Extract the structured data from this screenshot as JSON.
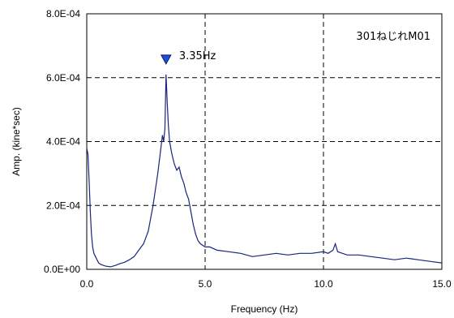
{
  "chart_data": {
    "type": "line",
    "xlabel": "Frequency (Hz)",
    "ylabel": "Amp. (kine*sec)",
    "xlim": [
      0,
      15
    ],
    "ylim": [
      0,
      0.0008
    ],
    "x_ticks": [
      "0.0",
      "5.0",
      "10.0",
      "15.0"
    ],
    "y_ticks": [
      "0.0E+00",
      "2.0E-04",
      "4.0E-04",
      "6.0E-04",
      "8.0E-04"
    ],
    "grid": true,
    "legend": "none",
    "line_color": "#1a237e",
    "marker_color": "#1e4fd8",
    "series": [
      {
        "x": [
          0.0,
          0.05,
          0.1,
          0.15,
          0.2,
          0.25,
          0.3,
          0.4,
          0.5,
          0.6,
          0.8,
          1.0,
          1.2,
          1.4,
          1.6,
          1.8,
          2.0,
          2.2,
          2.4,
          2.6,
          2.8,
          2.9,
          3.0,
          3.1,
          3.2,
          3.25,
          3.3,
          3.35,
          3.4,
          3.45,
          3.5,
          3.6,
          3.7,
          3.8,
          3.9,
          4.0,
          4.1,
          4.2,
          4.3,
          4.4,
          4.5,
          4.6,
          4.7,
          4.8,
          5.0,
          5.2,
          5.5,
          6.0,
          6.5,
          7.0,
          7.5,
          8.0,
          8.5,
          9.0,
          9.5,
          10.0,
          10.2,
          10.4,
          10.5,
          10.6,
          10.8,
          11.0,
          11.5,
          12.0,
          12.5,
          13.0,
          13.5,
          14.0,
          14.5,
          15.0
        ],
        "y": [
          0.00038,
          0.00036,
          0.00028,
          0.00018,
          0.00011,
          7e-05,
          5e-05,
          3.5e-05,
          2e-05,
          1.5e-05,
          1e-05,
          8e-06,
          1.2e-05,
          1.8e-05,
          2.2e-05,
          3e-05,
          4e-05,
          6e-05,
          8e-05,
          0.00012,
          0.0002,
          0.00025,
          0.0003,
          0.00036,
          0.00042,
          0.0004,
          0.00044,
          0.00061,
          0.00052,
          0.00045,
          0.0004,
          0.00036,
          0.00033,
          0.00031,
          0.00032,
          0.00029,
          0.00027,
          0.00024,
          0.00022,
          0.00018,
          0.00014,
          0.00011,
          9e-05,
          8e-05,
          7e-05,
          7e-05,
          6e-05,
          5.5e-05,
          5e-05,
          4e-05,
          4.5e-05,
          5e-05,
          4.5e-05,
          5e-05,
          5e-05,
          5.5e-05,
          5e-05,
          6e-05,
          8e-05,
          5.5e-05,
          5e-05,
          4.5e-05,
          4.5e-05,
          4e-05,
          3.5e-05,
          3e-05,
          3.5e-05,
          3e-05,
          2.5e-05,
          2e-05
        ]
      }
    ],
    "peak": {
      "x": 3.35,
      "y": 0.00061,
      "label": "3.35Hz"
    },
    "annotation": "301ねじれM01"
  }
}
